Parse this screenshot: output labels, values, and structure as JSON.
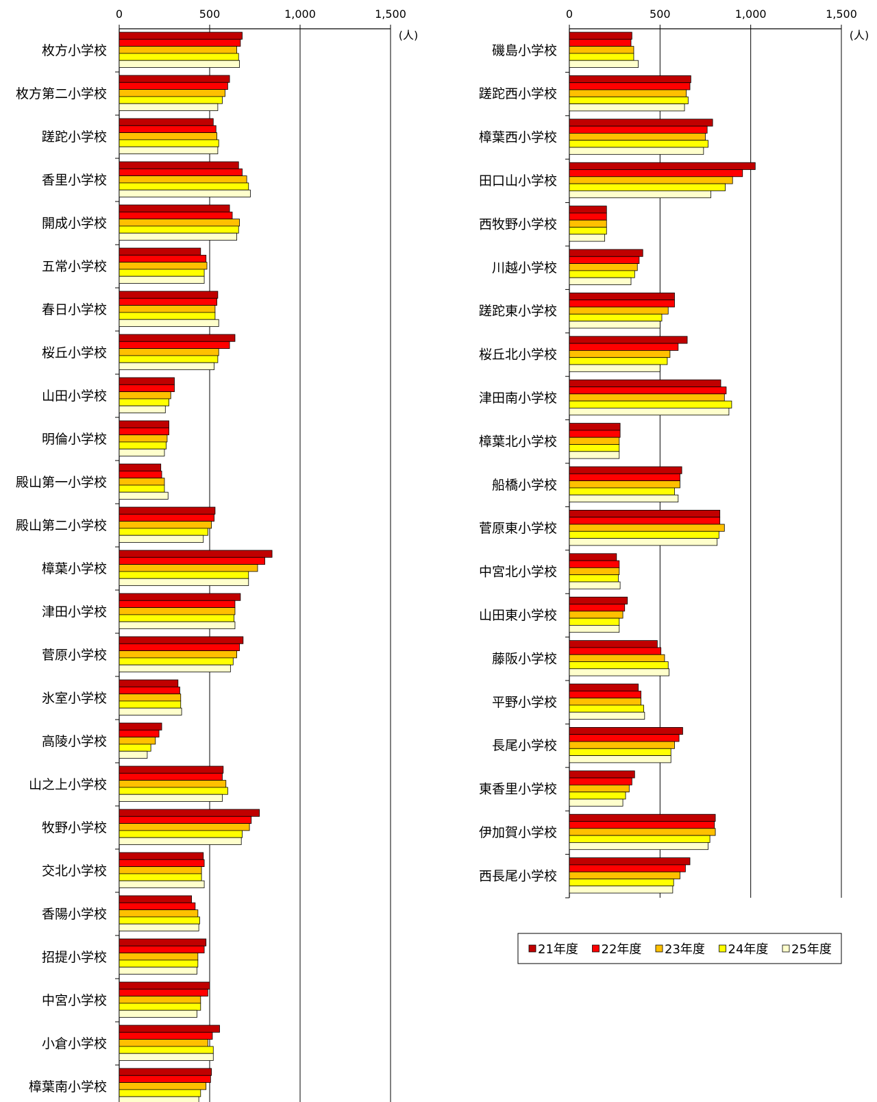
{
  "chart_data": [
    {
      "type": "bar",
      "orientation": "horizontal",
      "unit": "(人)",
      "xlim": [
        0,
        1500
      ],
      "xticks": [
        "0",
        "500",
        "1,000",
        "1,500"
      ],
      "grid": true,
      "categories": [
        "枚方小学校",
        "枚方第二小学校",
        "蹉跎小学校",
        "香里小学校",
        "開成小学校",
        "五常小学校",
        "春日小学校",
        "桜丘小学校",
        "山田小学校",
        "明倫小学校",
        "殿山第一小学校",
        "殿山第二小学校",
        "樟葉小学校",
        "津田小学校",
        "菅原小学校",
        "氷室小学校",
        "高陵小学校",
        "山之上小学校",
        "牧野小学校",
        "交北小学校",
        "香陽小学校",
        "招提小学校",
        "中宮小学校",
        "小倉小学校",
        "樟葉南小学校"
      ],
      "series": [
        {
          "name": "21年度",
          "values": [
            680,
            610,
            520,
            660,
            610,
            450,
            545,
            640,
            305,
            275,
            230,
            530,
            845,
            670,
            685,
            325,
            235,
            575,
            775,
            465,
            400,
            480,
            500,
            555,
            510
          ]
        },
        {
          "name": "22年度",
          "values": [
            670,
            600,
            535,
            680,
            625,
            480,
            540,
            610,
            305,
            275,
            235,
            525,
            805,
            640,
            665,
            335,
            220,
            570,
            730,
            470,
            420,
            470,
            490,
            515,
            505
          ]
        },
        {
          "name": "23年度",
          "values": [
            650,
            585,
            540,
            705,
            665,
            485,
            530,
            550,
            285,
            265,
            250,
            510,
            765,
            640,
            650,
            340,
            200,
            590,
            720,
            455,
            435,
            435,
            450,
            490,
            480
          ]
        },
        {
          "name": "24年度",
          "values": [
            660,
            570,
            550,
            715,
            660,
            470,
            530,
            545,
            275,
            260,
            250,
            490,
            715,
            635,
            630,
            340,
            175,
            600,
            680,
            455,
            445,
            435,
            450,
            520,
            450
          ]
        },
        {
          "name": "25年度",
          "values": [
            665,
            545,
            545,
            725,
            650,
            470,
            550,
            525,
            255,
            250,
            270,
            465,
            715,
            640,
            615,
            345,
            155,
            570,
            675,
            470,
            440,
            430,
            430,
            520,
            440
          ]
        }
      ]
    },
    {
      "type": "bar",
      "orientation": "horizontal",
      "unit": "(人)",
      "xlim": [
        0,
        1500
      ],
      "xticks": [
        "0",
        "500",
        "1,000",
        "1,500"
      ],
      "grid": true,
      "legend": "bottom",
      "categories": [
        "磯島小学校",
        "蹉跎西小学校",
        "樟葉西小学校",
        "田口山小学校",
        "西牧野小学校",
        "川越小学校",
        "蹉跎東小学校",
        "桜丘北小学校",
        "津田南小学校",
        "樟葉北小学校",
        "船橋小学校",
        "菅原東小学校",
        "中宮北小学校",
        "山田東小学校",
        "藤阪小学校",
        "平野小学校",
        "長尾小学校",
        "東香里小学校",
        "伊加賀小学校",
        "西長尾小学校"
      ],
      "series": [
        {
          "name": "21年度",
          "values": [
            345,
            670,
            790,
            1025,
            205,
            405,
            580,
            650,
            835,
            280,
            620,
            830,
            260,
            320,
            485,
            380,
            625,
            360,
            805,
            665
          ]
        },
        {
          "name": "22年度",
          "values": [
            340,
            665,
            760,
            955,
            205,
            385,
            580,
            600,
            865,
            280,
            610,
            830,
            275,
            305,
            505,
            395,
            605,
            345,
            800,
            640
          ]
        },
        {
          "name": "23年度",
          "values": [
            355,
            645,
            750,
            900,
            205,
            375,
            545,
            555,
            855,
            275,
            610,
            855,
            275,
            295,
            525,
            395,
            580,
            330,
            805,
            610
          ]
        },
        {
          "name": "24年度",
          "values": [
            355,
            655,
            765,
            860,
            205,
            360,
            510,
            540,
            895,
            275,
            580,
            825,
            270,
            275,
            545,
            410,
            560,
            310,
            775,
            575
          ]
        },
        {
          "name": "25年度",
          "values": [
            380,
            635,
            740,
            780,
            195,
            340,
            500,
            500,
            880,
            275,
            600,
            815,
            280,
            275,
            550,
            415,
            560,
            295,
            765,
            570
          ]
        }
      ]
    }
  ],
  "legend": {
    "entries": [
      "21年度",
      "22年度",
      "23年度",
      "24年度",
      "25年度"
    ]
  },
  "colors": [
    "#c00000",
    "#ff0000",
    "#ffc000",
    "#ffff00",
    "#ffffcc"
  ]
}
